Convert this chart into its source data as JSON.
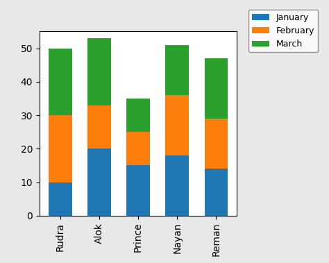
{
  "categories": [
    "Rudra",
    "Alok",
    "Prince",
    "Nayan",
    "Reman"
  ],
  "january": [
    10,
    20,
    15,
    18,
    14
  ],
  "february": [
    20,
    13,
    10,
    18,
    15
  ],
  "march": [
    20,
    20,
    10,
    15,
    18
  ],
  "colors": {
    "january": "#1f77b4",
    "february": "#ff7f0e",
    "march": "#2ca02c"
  },
  "ylim": [
    0,
    55
  ],
  "yticks": [
    0,
    10,
    20,
    30,
    40,
    50
  ],
  "legend_labels": [
    "January",
    "February",
    "March"
  ],
  "figsize": [
    4.74,
    3.79
  ],
  "dpi": 100,
  "bar_width": 0.6,
  "figure_facecolor": "#e8e8e8"
}
